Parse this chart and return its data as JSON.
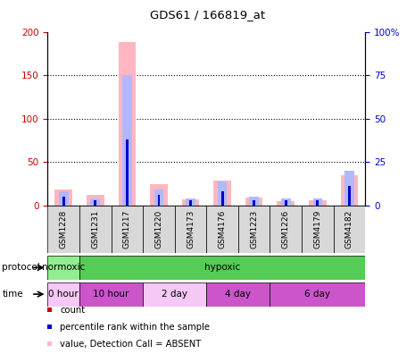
{
  "title": "GDS61 / 166819_at",
  "samples": [
    "GSM1228",
    "GSM1231",
    "GSM1217",
    "GSM1220",
    "GSM4173",
    "GSM4176",
    "GSM1223",
    "GSM1226",
    "GSM4179",
    "GSM4182"
  ],
  "pink_values": [
    18,
    12,
    188,
    24,
    7,
    29,
    9,
    5,
    6,
    35
  ],
  "light_blue_rank": [
    8,
    4,
    75,
    9,
    4,
    14,
    5,
    4,
    4,
    20
  ],
  "red_count": [
    2,
    2,
    2,
    2,
    2,
    3,
    2,
    2,
    2,
    4
  ],
  "blue_rank": [
    5,
    3,
    38,
    6,
    3,
    8,
    3,
    3,
    3,
    11
  ],
  "left_ylim": [
    0,
    200
  ],
  "right_ylim": [
    0,
    100
  ],
  "left_yticks": [
    0,
    50,
    100,
    150,
    200
  ],
  "right_yticks": [
    0,
    25,
    50,
    75,
    100
  ],
  "color_pink": "#FFB6C1",
  "color_light_blue": "#b0b8ff",
  "color_red": "#cc0000",
  "color_blue": "#0000cc",
  "color_green_light": "#90EE90",
  "color_green_dark": "#55CC55",
  "left_tick_color": "#cc0000",
  "right_tick_color": "#0000cc"
}
